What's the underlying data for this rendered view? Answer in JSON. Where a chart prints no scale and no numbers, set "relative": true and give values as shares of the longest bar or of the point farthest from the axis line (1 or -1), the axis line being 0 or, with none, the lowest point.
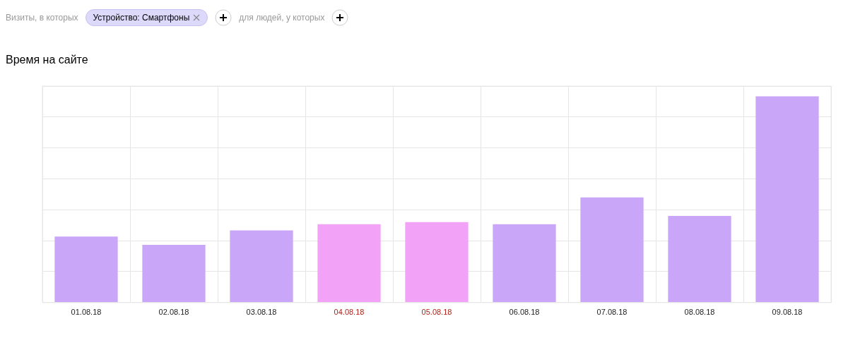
{
  "chart_data": {
    "type": "bar",
    "title": "Время на сайте",
    "annotations": [
      "Визиты, в которых",
      "Устройство: Смартфоны",
      "для людей, у которых"
    ],
    "categories": [
      "01.08.18",
      "02.08.18",
      "03.08.18",
      "04.08.18",
      "05.08.18",
      "06.08.18",
      "07.08.18",
      "08.08.18",
      "09.08.18"
    ],
    "values": [
      0.32,
      0.28,
      0.35,
      0.38,
      0.39,
      0.38,
      0.51,
      0.42,
      1
    ],
    "colors": [
      "#c9a6f8",
      "#c9a6f8",
      "#c9a6f8",
      "#f2a3f7",
      "#f2a3f7",
      "#c9a6f8",
      "#c9a6f8",
      "#c9a6f8",
      "#c9a6f8"
    ],
    "relative": true,
    "grid": true,
    "legend": false
  }
}
